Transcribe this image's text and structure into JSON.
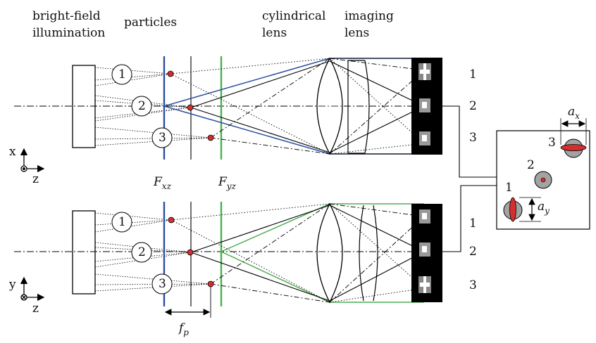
{
  "labels": {
    "illumination": [
      "bright-field",
      "illumination"
    ],
    "particles": "particles",
    "cylindrical_lens": [
      "cylindrical",
      "lens"
    ],
    "imaging_lens": [
      "imaging",
      "lens"
    ],
    "fxz": {
      "main": "F",
      "sub": "xz"
    },
    "fyz": {
      "main": "F",
      "sub": "yz"
    },
    "fp": {
      "main": "f",
      "sub": "p"
    },
    "ax": {
      "main": "a",
      "sub": "x"
    },
    "ay": {
      "main": "a",
      "sub": "y"
    }
  },
  "axes": {
    "top": {
      "up": "x",
      "right": "z"
    },
    "bottom": {
      "up": "y",
      "right": "z"
    }
  },
  "particle_numbers": [
    "1",
    "2",
    "3"
  ],
  "row_numbers_top": [
    "1",
    "2",
    "3"
  ],
  "row_numbers_bottom": [
    "1",
    "2",
    "3"
  ],
  "inset_numbers": [
    "1",
    "2",
    "3"
  ],
  "colors": {
    "blue_plane": "#2b4f9e",
    "green_plane": "#4caf50",
    "particle": "#d32f2f",
    "sensor": "#000000",
    "spot_gray": "#9e9e9e"
  }
}
